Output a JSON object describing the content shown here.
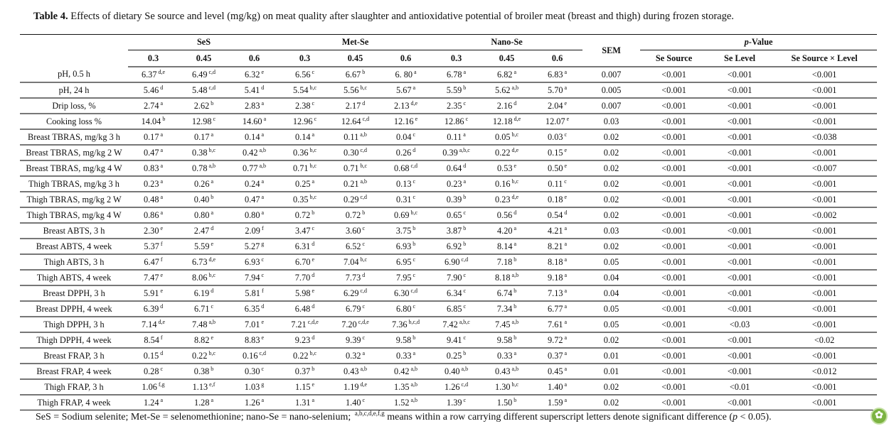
{
  "caption": {
    "label": "Table 4.",
    "text": "Effects of dietary Se source and level (mg/kg) on meat quality after slaughter and antioxidative potential of broiler meat (breast and thigh) during frozen storage."
  },
  "header": {
    "groups": [
      "SeS",
      "Met-Se",
      "Nano-Se"
    ],
    "levels": [
      "0.3",
      "0.45",
      "0.6",
      "0.3",
      "0.45",
      "0.6",
      "0.3",
      "0.45",
      "0.6"
    ],
    "sem": "SEM",
    "p_value_prefix": "p",
    "p_value_suffix": "-Value",
    "p_columns": [
      "Se Source",
      "Se Level",
      "Se Source × Level"
    ]
  },
  "rows": [
    {
      "label": "pH, 0.5 h",
      "cells": [
        [
          "6.37",
          "d,e"
        ],
        [
          "6.49",
          "c,d"
        ],
        [
          "6.32",
          "e"
        ],
        [
          "6.56",
          "c"
        ],
        [
          "6.67",
          "b"
        ],
        [
          "6. 80",
          "a"
        ],
        [
          "6.78",
          "a"
        ],
        [
          "6.82",
          "a"
        ],
        [
          "6.83",
          "a"
        ]
      ],
      "sem": "0.007",
      "p": [
        "<0.001",
        "<0.001",
        "<0.001"
      ]
    },
    {
      "label": "pH, 24 h",
      "cells": [
        [
          "5.46",
          "d"
        ],
        [
          "5.48",
          "c,d"
        ],
        [
          "5.41",
          "d"
        ],
        [
          "5.54",
          "b,c"
        ],
        [
          "5.56",
          "b,c"
        ],
        [
          "5.67",
          "a"
        ],
        [
          "5.59",
          "b"
        ],
        [
          "5.62",
          "a,b"
        ],
        [
          "5.70",
          "a"
        ]
      ],
      "sem": "0.005",
      "p": [
        "<0.001",
        "<0.001",
        "<0.001"
      ]
    },
    {
      "label": "Drip loss, %",
      "cells": [
        [
          "2.74",
          "a"
        ],
        [
          "2.62",
          "b"
        ],
        [
          "2.83",
          "a"
        ],
        [
          "2.38",
          "c"
        ],
        [
          "2.17",
          "d"
        ],
        [
          "2.13",
          "d,e"
        ],
        [
          "2.35",
          "c"
        ],
        [
          "2.16",
          "d"
        ],
        [
          "2.04",
          "e"
        ]
      ],
      "sem": "0.007",
      "p": [
        "<0.001",
        "<0.001",
        "<0.001"
      ]
    },
    {
      "label": "Cooking loss %",
      "cells": [
        [
          "14.04",
          "b"
        ],
        [
          "12.98",
          "c"
        ],
        [
          "14.60",
          "a"
        ],
        [
          "12.96",
          "c"
        ],
        [
          "12.64",
          "c,d"
        ],
        [
          "12.16",
          "e"
        ],
        [
          "12.86",
          "c"
        ],
        [
          "12.18",
          "d,e"
        ],
        [
          "12.07",
          "e"
        ]
      ],
      "sem": "0.03",
      "p": [
        "<0.001",
        "<0.001",
        "<0.001"
      ]
    },
    {
      "label": "Breast TBRAS, mg/kg 3 h",
      "cells": [
        [
          "0.17",
          "a"
        ],
        [
          "0.17",
          "a"
        ],
        [
          "0.14",
          "a"
        ],
        [
          "0.14",
          "a"
        ],
        [
          "0.11",
          "a,b"
        ],
        [
          "0.04",
          "c"
        ],
        [
          "0.11",
          "a"
        ],
        [
          "0.05",
          "b,c"
        ],
        [
          "0.03",
          "c"
        ]
      ],
      "sem": "0.02",
      "p": [
        "<0.001",
        "<0.001",
        "<0.038"
      ]
    },
    {
      "label": "Breast TBRAS, mg/kg 2 W",
      "cells": [
        [
          "0.47",
          "a"
        ],
        [
          "0.38",
          "b,c"
        ],
        [
          "0.42",
          "a,b"
        ],
        [
          "0.36",
          "b,c"
        ],
        [
          "0.30",
          "c,d"
        ],
        [
          "0.26",
          "d"
        ],
        [
          "0.39",
          "a,b,c"
        ],
        [
          "0.22",
          "d,e"
        ],
        [
          "0.15",
          "e"
        ]
      ],
      "sem": "0.02",
      "p": [
        "<0.001",
        "<0.001",
        "<0.001"
      ]
    },
    {
      "label": "Breast TBRAS, mg/kg 4 W",
      "cells": [
        [
          "0.83",
          "a"
        ],
        [
          "0.78",
          "a,b"
        ],
        [
          "0.77",
          "a,b"
        ],
        [
          "0.71",
          "b,c"
        ],
        [
          "0.71",
          "b,c"
        ],
        [
          "0.68",
          "c,d"
        ],
        [
          "0.64",
          "d"
        ],
        [
          "0.53",
          "e"
        ],
        [
          "0.50",
          "e"
        ]
      ],
      "sem": "0.02",
      "p": [
        "<0.001",
        "<0.001",
        "<0.007"
      ]
    },
    {
      "label": "Thigh TBRAS, mg/kg 3 h",
      "cells": [
        [
          "0.23",
          "a"
        ],
        [
          "0.26",
          "a"
        ],
        [
          "0.24",
          "a"
        ],
        [
          "0.25",
          "a"
        ],
        [
          "0.21",
          "a,b"
        ],
        [
          "0.13",
          "c"
        ],
        [
          "0.23",
          "a"
        ],
        [
          "0.16",
          "b,c"
        ],
        [
          "0.11",
          "c"
        ]
      ],
      "sem": "0.02",
      "p": [
        "<0.001",
        "<0.001",
        "<0.001"
      ]
    },
    {
      "label": "Thigh TBRAS, mg/kg 2 W",
      "cells": [
        [
          "0.48",
          "a"
        ],
        [
          "0.40",
          "b"
        ],
        [
          "0.47",
          "a"
        ],
        [
          "0.35",
          "b,c"
        ],
        [
          "0.29",
          "c,d"
        ],
        [
          "0.31",
          "c"
        ],
        [
          "0.39",
          "b"
        ],
        [
          "0.23",
          "d,e"
        ],
        [
          "0.18",
          "e"
        ]
      ],
      "sem": "0.02",
      "p": [
        "<0.001",
        "<0.001",
        "<0.001"
      ]
    },
    {
      "label": "Thigh TBRAS, mg/kg 4 W",
      "cells": [
        [
          "0.86",
          "a"
        ],
        [
          "0.80",
          "a"
        ],
        [
          "0.80",
          "a"
        ],
        [
          "0.72",
          "b"
        ],
        [
          "0.72",
          "b"
        ],
        [
          "0.69",
          "b,c"
        ],
        [
          "0.65",
          "c"
        ],
        [
          "0.56",
          "d"
        ],
        [
          "0.54",
          "d"
        ]
      ],
      "sem": "0.02",
      "p": [
        "<0.001",
        "<0.001",
        "<0.002"
      ]
    },
    {
      "label": "Breast ABTS, 3 h",
      "cells": [
        [
          "2.30",
          "e"
        ],
        [
          "2.47",
          "d"
        ],
        [
          "2.09",
          "f"
        ],
        [
          "3.47",
          "c"
        ],
        [
          "3.60",
          "c"
        ],
        [
          "3.75",
          "b"
        ],
        [
          "3.87",
          "b"
        ],
        [
          "4.20",
          "a"
        ],
        [
          "4.21",
          "a"
        ]
      ],
      "sem": "0.03",
      "p": [
        "<0.001",
        "<0.001",
        "<0.001"
      ]
    },
    {
      "label": "Breast ABTS, 4 week",
      "cells": [
        [
          "5.37",
          "f"
        ],
        [
          "5.59",
          "e"
        ],
        [
          "5.27",
          "g"
        ],
        [
          "6.31",
          "d"
        ],
        [
          "6.52",
          "c"
        ],
        [
          "6.93",
          "b"
        ],
        [
          "6.92",
          "b"
        ],
        [
          "8.14",
          "a"
        ],
        [
          "8.21",
          "a"
        ]
      ],
      "sem": "0.02",
      "p": [
        "<0.001",
        "<0.001",
        "<0.001"
      ]
    },
    {
      "label": "Thigh ABTS, 3 h",
      "cells": [
        [
          "6.47",
          "f"
        ],
        [
          "6.73",
          "d,e"
        ],
        [
          "6.93",
          "c"
        ],
        [
          "6.70",
          "e"
        ],
        [
          "7.04",
          "b,c"
        ],
        [
          "6.95",
          "c"
        ],
        [
          "6.90",
          "c,d"
        ],
        [
          "7.18",
          "b"
        ],
        [
          "8.18",
          "a"
        ]
      ],
      "sem": "0.05",
      "p": [
        "<0.001",
        "<0.001",
        "<0.001"
      ]
    },
    {
      "label": "Thigh ABTS, 4 week",
      "cells": [
        [
          "7.47",
          "e"
        ],
        [
          "8.06",
          "b,c"
        ],
        [
          "7.94",
          "c"
        ],
        [
          "7.70",
          "d"
        ],
        [
          "7.73",
          "d"
        ],
        [
          "7.95",
          "c"
        ],
        [
          "7.90",
          "c"
        ],
        [
          "8.18",
          "a,b"
        ],
        [
          "9.18",
          "a"
        ]
      ],
      "sem": "0.04",
      "p": [
        "<0.001",
        "<0.001",
        "<0.001"
      ]
    },
    {
      "label": "Breast DPPH, 3 h",
      "cells": [
        [
          "5.91",
          "e"
        ],
        [
          "6.19",
          "d"
        ],
        [
          "5.81",
          "f"
        ],
        [
          "5.98",
          "e"
        ],
        [
          "6.29",
          "c,d"
        ],
        [
          "6.30",
          "c,d"
        ],
        [
          "6.34",
          "c"
        ],
        [
          "6.74",
          "b"
        ],
        [
          "7.13",
          "a"
        ]
      ],
      "sem": "0.04",
      "p": [
        "<0.001",
        "<0.001",
        "<0.001"
      ]
    },
    {
      "label": "Breast DPPH, 4 week",
      "cells": [
        [
          "6.39",
          "d"
        ],
        [
          "6.71",
          "c"
        ],
        [
          "6.35",
          "d"
        ],
        [
          "6.48",
          "d"
        ],
        [
          "6.79",
          "c"
        ],
        [
          "6.80",
          "c"
        ],
        [
          "6.85",
          "c"
        ],
        [
          "7.34",
          "b"
        ],
        [
          "6.77",
          "a"
        ]
      ],
      "sem": "0.05",
      "p": [
        "<0.001",
        "<0.001",
        "<0.001"
      ]
    },
    {
      "label": "Thigh DPPH, 3 h",
      "cells": [
        [
          "7.14",
          "d,e"
        ],
        [
          "7.48",
          "a,b"
        ],
        [
          "7.01",
          "e"
        ],
        [
          "7.21",
          "c,d,e"
        ],
        [
          "7.20",
          "c,d,e"
        ],
        [
          "7.36",
          "b,c,d"
        ],
        [
          "7.42",
          "a,b,c"
        ],
        [
          "7.45",
          "a,b"
        ],
        [
          "7.61",
          "a"
        ]
      ],
      "sem": "0.05",
      "p": [
        "<0.001",
        "<0.03",
        "<0.001"
      ]
    },
    {
      "label": "Thigh DPPH, 4 week",
      "cells": [
        [
          "8.54",
          "f"
        ],
        [
          "8.82",
          "e"
        ],
        [
          "8.83",
          "e"
        ],
        [
          "9.23",
          "d"
        ],
        [
          "9.39",
          "c"
        ],
        [
          "9.58",
          "b"
        ],
        [
          "9.41",
          "c"
        ],
        [
          "9.58",
          "b"
        ],
        [
          "9.72",
          "a"
        ]
      ],
      "sem": "0.02",
      "p": [
        "<0.001",
        "<0.001",
        "<0.02"
      ]
    },
    {
      "label": "Breast FRAP, 3 h",
      "cells": [
        [
          "0.15",
          "d"
        ],
        [
          "0.22",
          "b,c"
        ],
        [
          "0.16",
          "c,d"
        ],
        [
          "0.22",
          "b,c"
        ],
        [
          "0.32",
          "a"
        ],
        [
          "0.33",
          "a"
        ],
        [
          "0.25",
          "b"
        ],
        [
          "0.33",
          "a"
        ],
        [
          "0.37",
          "a"
        ]
      ],
      "sem": "0.01",
      "p": [
        "<0.001",
        "<0.001",
        "<0.001"
      ]
    },
    {
      "label": "Breast FRAP, 4 week",
      "cells": [
        [
          "0.28",
          "c"
        ],
        [
          "0.38",
          "b"
        ],
        [
          "0.30",
          "c"
        ],
        [
          "0.37",
          "b"
        ],
        [
          "0.43",
          "a,b"
        ],
        [
          "0.42",
          "a,b"
        ],
        [
          "0.40",
          "a,b"
        ],
        [
          "0.43",
          "a,b"
        ],
        [
          "0.45",
          "a"
        ]
      ],
      "sem": "0.01",
      "p": [
        "<0.001",
        "<0.001",
        "<0.012"
      ]
    },
    {
      "label": "Thigh FRAP, 3 h",
      "cells": [
        [
          "1.06",
          "f,g"
        ],
        [
          "1.13",
          "e,f"
        ],
        [
          "1.03",
          "g"
        ],
        [
          "1.15",
          "e"
        ],
        [
          "1.19",
          "d,e"
        ],
        [
          "1.35",
          "a,b"
        ],
        [
          "1.26",
          "c,d"
        ],
        [
          "1.30",
          "b,c"
        ],
        [
          "1.40",
          "a"
        ]
      ],
      "sem": "0.02",
      "p": [
        "<0.001",
        "<0.01",
        "<0.001"
      ]
    },
    {
      "label": "Thigh FRAP, 4 week",
      "cells": [
        [
          "1.24",
          "a"
        ],
        [
          "1.28",
          "a"
        ],
        [
          "1.26",
          "a"
        ],
        [
          "1.31",
          "a"
        ],
        [
          "1.40",
          "c"
        ],
        [
          "1.52",
          "a,b"
        ],
        [
          "1.39",
          "c"
        ],
        [
          "1.50",
          "b"
        ],
        [
          "1.59",
          "a"
        ]
      ],
      "sem": "0.02",
      "p": [
        "<0.001",
        "<0.001",
        "<0.001"
      ]
    }
  ],
  "footnote": {
    "text1": "SeS = Sodium selenite; Met-Se = selenomethionine; nano-Se = nano-selenium; ",
    "sup": "a,b,c,d,e,f,g",
    "text2": " means within a row carrying different superscript letters denote significant difference (",
    "p": "p",
    "text3": " < 0.05)."
  },
  "logo": {
    "icon": "leaf-logo-icon",
    "color": "#7cb342"
  }
}
